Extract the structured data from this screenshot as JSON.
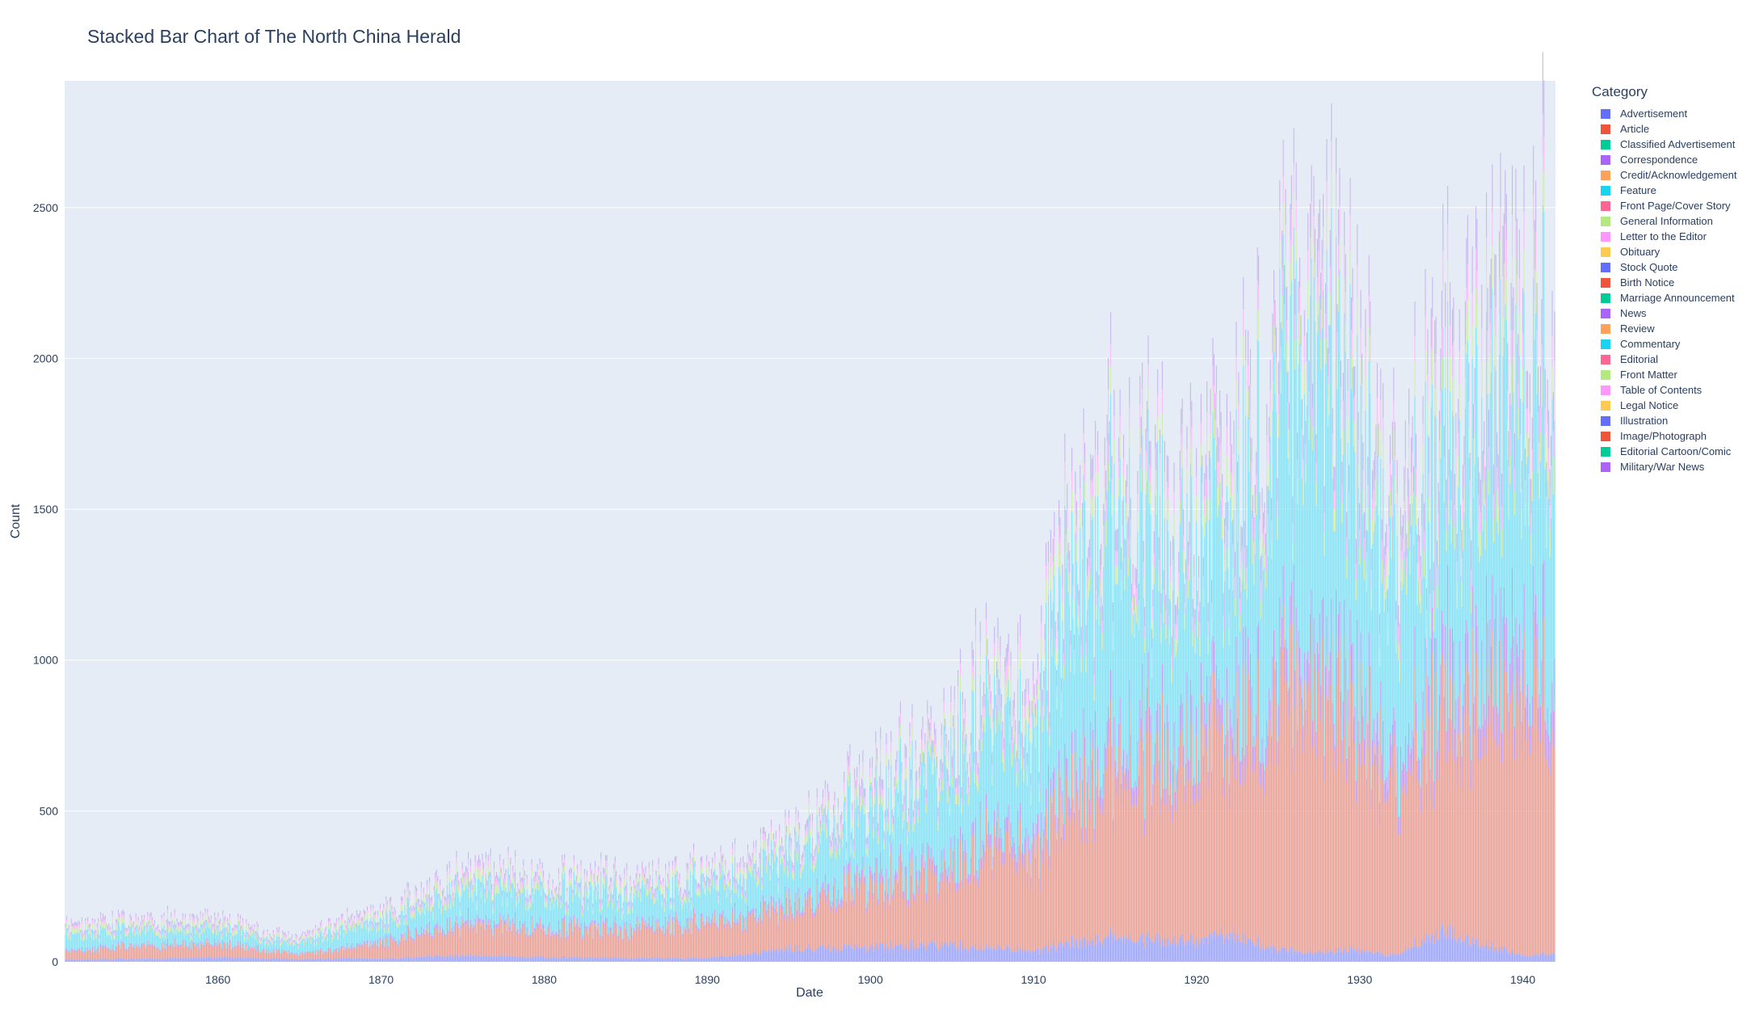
{
  "chart_data": {
    "type": "bar",
    "barmode": "stack",
    "title": "Stacked Bar Chart of The North China Herald",
    "xlabel": "Date",
    "ylabel": "Count",
    "legend_title": "Category",
    "legend_position": "right",
    "grid": true,
    "xlim": [
      1850.6,
      1942.0
    ],
    "ylim": [
      0,
      2920
    ],
    "x_ticks": [
      1860,
      1870,
      1880,
      1890,
      1900,
      1910,
      1920,
      1930,
      1940
    ],
    "y_ticks": [
      0,
      500,
      1000,
      1500,
      2000,
      2500
    ],
    "categories": [
      "Advertisement",
      "Article",
      "Classified Advertisement",
      "Correspondence",
      "Credit/Acknowledgement",
      "Feature",
      "Front Page/Cover Story",
      "General Information",
      "Letter to the Editor",
      "Obituary",
      "Stock Quote",
      "Birth Notice",
      "Marriage Announcement",
      "News",
      "Review",
      "Commentary",
      "Editorial",
      "Front Matter",
      "Table of Contents",
      "Legal Notice",
      "Illustration",
      "Image/Photograph",
      "Editorial Cartoon/Comic",
      "Military/War News"
    ],
    "colors": [
      "#636efa",
      "#EF553B",
      "#00cc96",
      "#ab63fa",
      "#FFA15A",
      "#19d3f3",
      "#FF6692",
      "#B6E880",
      "#FF97FF",
      "#FECB52",
      "#636efa",
      "#EF553B",
      "#00cc96",
      "#ab63fa",
      "#FFA15A",
      "#19d3f3",
      "#FF6692",
      "#B6E880",
      "#FF97FF",
      "#FECB52",
      "#636efa",
      "#EF553B",
      "#00cc96",
      "#ab63fa"
    ],
    "series_profile": {
      "note_years": [
        1851,
        1855,
        1860,
        1863,
        1865,
        1868,
        1870,
        1873,
        1875,
        1880,
        1885,
        1890,
        1895,
        1900,
        1905,
        1907,
        1910,
        1912,
        1915,
        1920,
        1922,
        1925,
        1927,
        1930,
        1932,
        1935,
        1940,
        1941.9
      ],
      "Advertisement": [
        8,
        10,
        15,
        12,
        8,
        12,
        10,
        18,
        20,
        15,
        12,
        12,
        40,
        50,
        55,
        45,
        35,
        60,
        80,
        70,
        90,
        40,
        30,
        40,
        20,
        100,
        20,
        30
      ],
      "Article": [
        25,
        40,
        40,
        25,
        15,
        30,
        50,
        80,
        100,
        90,
        90,
        110,
        130,
        200,
        230,
        350,
        300,
        500,
        550,
        650,
        600,
        850,
        900,
        750,
        550,
        750,
        850,
        850
      ],
      "Correspondence": [
        5,
        5,
        5,
        3,
        2,
        5,
        8,
        10,
        12,
        10,
        10,
        10,
        15,
        25,
        30,
        40,
        50,
        60,
        70,
        80,
        90,
        100,
        110,
        100,
        80,
        120,
        140,
        140
      ],
      "Feature": [
        50,
        50,
        45,
        35,
        30,
        60,
        60,
        80,
        110,
        110,
        100,
        110,
        150,
        220,
        300,
        380,
        330,
        650,
        700,
        600,
        550,
        850,
        1000,
        800,
        600,
        700,
        800,
        900
      ],
      "General Information": [
        15,
        15,
        15,
        10,
        8,
        15,
        15,
        20,
        25,
        20,
        20,
        20,
        25,
        30,
        40,
        50,
        50,
        60,
        70,
        70,
        80,
        90,
        100,
        90,
        80,
        100,
        120,
        120
      ],
      "Letter to the Editor": [
        10,
        10,
        10,
        8,
        6,
        10,
        10,
        15,
        20,
        15,
        15,
        15,
        20,
        25,
        30,
        40,
        40,
        50,
        60,
        60,
        70,
        80,
        90,
        80,
        70,
        90,
        100,
        100
      ],
      "Other": [
        10,
        10,
        10,
        7,
        6,
        10,
        10,
        15,
        20,
        15,
        15,
        15,
        20,
        30,
        40,
        50,
        50,
        70,
        80,
        80,
        90,
        100,
        110,
        100,
        90,
        120,
        150,
        150
      ]
    }
  }
}
